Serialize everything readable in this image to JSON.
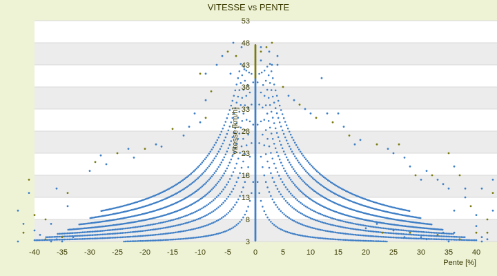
{
  "chart_data": {
    "type": "scatter",
    "title": "VITESSE vs PENTE",
    "xlabel": "Pente [%]",
    "ylabel": "Vitesse [km/h]",
    "xlim": [
      -40,
      43
    ],
    "ylim": [
      3,
      53
    ],
    "x_ticks": [
      -40,
      -35,
      -30,
      -25,
      -20,
      -15,
      -10,
      -5,
      0,
      5,
      10,
      15,
      20,
      25,
      30,
      35,
      40
    ],
    "y_ticks": [
      3,
      8,
      13,
      18,
      23,
      28,
      33,
      38,
      43,
      48,
      53
    ],
    "grid": true,
    "legend": "none",
    "colors": {
      "points": "#3f7fc6",
      "outliers": "#7a7a10",
      "band": "#ececec",
      "plot_bg": "#ffffff"
    },
    "series": [
      {
        "curve": 1,
        "a": 20,
        "xmax": 40,
        "values_sampled": [
          [
            -2,
            13
          ],
          [
            -5,
            7
          ],
          [
            -10,
            4.8
          ],
          [
            -20,
            3.7
          ],
          [
            -30,
            3.3
          ],
          [
            2,
            13
          ],
          [
            5,
            7
          ],
          [
            10,
            4.8
          ],
          [
            20,
            3.7
          ],
          [
            30,
            3.3
          ]
        ]
      },
      {
        "curve": 2,
        "a": 45,
        "xmax": 40,
        "values_sampled": [
          [
            -3,
            18
          ],
          [
            -5,
            12
          ],
          [
            -10,
            7.5
          ],
          [
            -20,
            5.3
          ],
          [
            -30,
            4.5
          ],
          [
            3,
            18
          ],
          [
            5,
            12
          ],
          [
            10,
            7.5
          ],
          [
            20,
            5.3
          ],
          [
            30,
            4.5
          ]
        ]
      },
      {
        "curve": 3,
        "a": 70,
        "xmax": 38,
        "values_sampled": [
          [
            -5,
            17
          ],
          [
            -10,
            10
          ],
          [
            -20,
            6.5
          ],
          [
            -30,
            5.3
          ],
          [
            5,
            17
          ],
          [
            10,
            10
          ],
          [
            20,
            6.5
          ],
          [
            30,
            5.3
          ]
        ]
      },
      {
        "curve": 4,
        "a": 95,
        "xmax": 36,
        "values_sampled": [
          [
            -5,
            22
          ],
          [
            -10,
            12.5
          ],
          [
            -20,
            7.8
          ],
          [
            -30,
            6.2
          ],
          [
            5,
            22
          ],
          [
            10,
            12.5
          ],
          [
            20,
            7.8
          ],
          [
            30,
            6.2
          ]
        ]
      },
      {
        "curve": 5,
        "a": 125,
        "xmax": 34,
        "values_sampled": [
          [
            -5,
            28
          ],
          [
            -10,
            15.5
          ],
          [
            -20,
            9.3
          ],
          [
            -30,
            7.2
          ],
          [
            5,
            28
          ],
          [
            10,
            15.5
          ],
          [
            20,
            9.3
          ],
          [
            30,
            7.2
          ]
        ]
      },
      {
        "curve": 6,
        "a": 160,
        "xmax": 32,
        "values_sampled": [
          [
            -5,
            35
          ],
          [
            -10,
            19
          ],
          [
            -20,
            11
          ],
          [
            -30,
            8.3
          ],
          [
            5,
            35
          ],
          [
            10,
            19
          ],
          [
            20,
            11
          ],
          [
            30,
            8.3
          ]
        ]
      },
      {
        "curve": 7,
        "a": 200,
        "xmax": 30,
        "values_sampled": [
          [
            -5,
            43
          ],
          [
            -10,
            23
          ],
          [
            -20,
            13
          ],
          [
            -28,
            10
          ],
          [
            5,
            43
          ],
          [
            10,
            23
          ],
          [
            20,
            13
          ],
          [
            28,
            10
          ]
        ]
      },
      {
        "curve": 8,
        "a": 240,
        "xmax": 28,
        "values_sampled": [
          [
            -6,
            43
          ],
          [
            -10,
            27
          ],
          [
            -20,
            15
          ],
          [
            -28,
            11.6
          ],
          [
            6,
            43
          ],
          [
            10,
            27
          ],
          [
            20,
            15
          ],
          [
            28,
            11.6
          ]
        ]
      }
    ],
    "vertical_cluster_x": 0,
    "outliers": [
      [
        -40,
        9
      ],
      [
        -40,
        5.5
      ],
      [
        -39,
        4.5
      ],
      [
        -38,
        3.5
      ],
      [
        -37,
        3
      ],
      [
        -36,
        3.5
      ],
      [
        -41,
        17
      ],
      [
        -41,
        14
      ],
      [
        -43,
        10
      ],
      [
        -42,
        5
      ],
      [
        -43,
        3
      ],
      [
        -42,
        7
      ],
      [
        -38,
        8
      ],
      [
        -37,
        7
      ],
      [
        -36,
        15
      ],
      [
        -34,
        14
      ],
      [
        -34,
        11
      ],
      [
        -33,
        4
      ],
      [
        -35,
        4
      ],
      [
        -35,
        3
      ],
      [
        -30,
        19
      ],
      [
        -29,
        21
      ],
      [
        -28,
        22.5
      ],
      [
        -27,
        20.5
      ],
      [
        -25,
        23
      ],
      [
        -23,
        24
      ],
      [
        -22,
        22
      ],
      [
        -20,
        24
      ],
      [
        -18,
        25
      ],
      [
        -17,
        24.5
      ],
      [
        -15,
        28.5
      ],
      [
        -13,
        27
      ],
      [
        -12,
        29
      ],
      [
        -10,
        41
      ],
      [
        -9,
        41
      ],
      [
        -9,
        35
      ],
      [
        -8,
        37
      ],
      [
        -7,
        43
      ],
      [
        -6,
        45
      ],
      [
        -5,
        46
      ],
      [
        -4.5,
        41
      ],
      [
        -4,
        48
      ],
      [
        -3.5,
        45
      ],
      [
        -2.5,
        47
      ],
      [
        -2,
        42
      ],
      [
        -9,
        31
      ],
      [
        -10,
        30
      ],
      [
        -11,
        32
      ],
      [
        1,
        46
      ],
      [
        1,
        44
      ],
      [
        1,
        47
      ],
      [
        2,
        47
      ],
      [
        2.5,
        46
      ],
      [
        3,
        43
      ],
      [
        3,
        48
      ],
      [
        4,
        45
      ],
      [
        4,
        43
      ],
      [
        5,
        38
      ],
      [
        6,
        36
      ],
      [
        7,
        35
      ],
      [
        8,
        34
      ],
      [
        9,
        33
      ],
      [
        10,
        32
      ],
      [
        11,
        31
      ],
      [
        12,
        40
      ],
      [
        13,
        32
      ],
      [
        14,
        30
      ],
      [
        15,
        32
      ],
      [
        16,
        29
      ],
      [
        17,
        27
      ],
      [
        18,
        25
      ],
      [
        19,
        26
      ],
      [
        22,
        25
      ],
      [
        24,
        24
      ],
      [
        25,
        23
      ],
      [
        26,
        25
      ],
      [
        27,
        22
      ],
      [
        28,
        20
      ],
      [
        29,
        18
      ],
      [
        30,
        17
      ],
      [
        31,
        19
      ],
      [
        32,
        18
      ],
      [
        33,
        17
      ],
      [
        34,
        16
      ],
      [
        35,
        23
      ],
      [
        35,
        15
      ],
      [
        36,
        20
      ],
      [
        37,
        18
      ],
      [
        38,
        15
      ],
      [
        38,
        13
      ],
      [
        39,
        11
      ],
      [
        40,
        9
      ],
      [
        40,
        6.5
      ],
      [
        40,
        5
      ],
      [
        41,
        4
      ],
      [
        41,
        3
      ],
      [
        42,
        5
      ],
      [
        42,
        3.5
      ],
      [
        43,
        10
      ],
      [
        43,
        14
      ],
      [
        43,
        17
      ],
      [
        41,
        15
      ],
      [
        42,
        8
      ],
      [
        36,
        10
      ],
      [
        36,
        5
      ],
      [
        37,
        3.5
      ],
      [
        35,
        3
      ],
      [
        34,
        5
      ],
      [
        33,
        4.5
      ],
      [
        31,
        3.5
      ],
      [
        30,
        4
      ],
      [
        28,
        5
      ],
      [
        27,
        4
      ],
      [
        25,
        5.5
      ],
      [
        23,
        5
      ],
      [
        22,
        7
      ],
      [
        20,
        6
      ]
    ]
  }
}
